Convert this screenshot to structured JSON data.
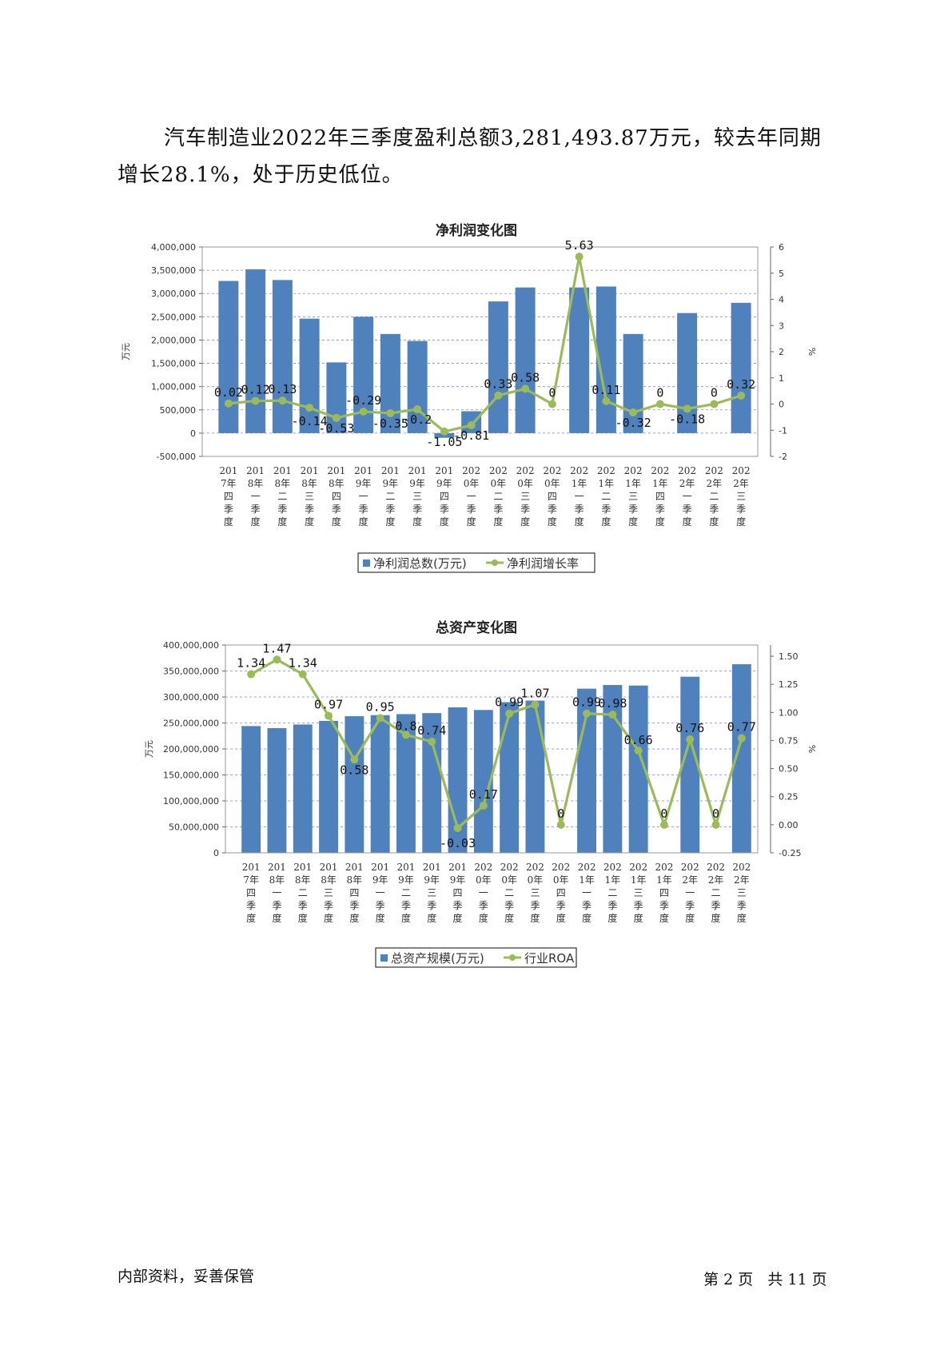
{
  "paragraph": "汽车制造业2022年三季度盈利总额3,281,493.87万元，较去年同期增长28.1%，处于历史低位。",
  "footer": {
    "confidential": "内部资料，妥善保管",
    "page_prefix": "第",
    "page_number": "2",
    "page_unit": "页",
    "total_prefix": "共",
    "total_pages": "11"
  },
  "colors": {
    "bar": "#4f81bd",
    "line": "#9bbb59",
    "grid": "#8080ff"
  },
  "chart_data": [
    {
      "type": "bar",
      "title": "净利润变化图",
      "ylabel": "万元",
      "y2label": "%",
      "ylim": [
        -500000,
        4000000
      ],
      "y2lim": [
        -2,
        6
      ],
      "yticks": [
        "4,000,000",
        "3,500,000",
        "3,000,000",
        "2,500,000",
        "2,000,000",
        "1,500,000",
        "1,000,000",
        "500,000",
        "0",
        "-500,000"
      ],
      "y2ticks": [
        "6",
        "5",
        "4",
        "3",
        "2",
        "1",
        "0",
        "-1",
        "-2"
      ],
      "categories": [
        "2017年四季度",
        "2018年一季度",
        "2018年二季度",
        "2018年三季度",
        "2018年四季度",
        "2019年一季度",
        "2019年二季度",
        "2019年三季度",
        "2019年四季度",
        "2020年一季度",
        "2020年二季度",
        "2020年三季度",
        "2020年四季度",
        "2021年一季度",
        "2021年二季度",
        "2021年三季度",
        "2021年四季度",
        "2022年一季度",
        "2022年二季度",
        "2022年三季度"
      ],
      "series": [
        {
          "name": "净利润总数(万元)",
          "kind": "bar",
          "axis": "left",
          "values": [
            3270000,
            3520000,
            3290000,
            2460000,
            1520000,
            2500000,
            2130000,
            1980000,
            -100000,
            470000,
            2830000,
            3130000,
            null,
            3130000,
            3150000,
            2130000,
            null,
            2580000,
            null,
            2800000
          ]
        },
        {
          "name": "净利润增长率",
          "kind": "line",
          "axis": "right",
          "values": [
            0.02,
            0.12,
            0.13,
            -0.14,
            -0.53,
            -0.29,
            -0.35,
            -0.2,
            -1.05,
            -0.81,
            0.33,
            0.58,
            0,
            5.63,
            0.11,
            -0.32,
            0,
            -0.18,
            0,
            0.32
          ],
          "labels": [
            "0.02",
            "0.12",
            "0.13",
            "-0.14",
            "-0.53",
            "-0.29",
            "-0.35",
            "-0.2",
            "-1.05",
            "-0.81",
            "0.33",
            "0.58",
            "0",
            "5.63",
            "0.11",
            "-0.32",
            "0",
            "-0.18",
            "0",
            "0.32"
          ]
        }
      ],
      "legend": "bottom",
      "grid": true
    },
    {
      "type": "bar",
      "title": "总资产变化图",
      "ylabel": "万元",
      "y2label": "%",
      "ylim": [
        0,
        400000000
      ],
      "y2lim": [
        -0.25,
        1.6
      ],
      "yticks": [
        "400,000,000",
        "350,000,000",
        "300,000,000",
        "250,000,000",
        "200,000,000",
        "150,000,000",
        "100,000,000",
        "50,000,000",
        "0"
      ],
      "y2ticks": [
        "1.50",
        "1.25",
        "1.00",
        "0.75",
        "0.50",
        "0.25",
        "0.00",
        "-0.25"
      ],
      "categories": [
        "2017年四季度",
        "2018年一季度",
        "2018年二季度",
        "2018年三季度",
        "2018年四季度",
        "2019年一季度",
        "2019年二季度",
        "2019年三季度",
        "2019年四季度",
        "2020年一季度",
        "2020年二季度",
        "2020年三季度",
        "2020年四季度",
        "2021年一季度",
        "2021年二季度",
        "2021年三季度",
        "2021年四季度",
        "2022年一季度",
        "2022年二季度",
        "2022年三季度"
      ],
      "series": [
        {
          "name": "总资产规模(万元)",
          "kind": "bar",
          "axis": "left",
          "values": [
            244000000,
            240000000,
            247000000,
            254000000,
            263000000,
            265000000,
            267000000,
            269000000,
            280000000,
            275000000,
            290000000,
            293000000,
            null,
            316000000,
            323000000,
            322000000,
            null,
            339000000,
            null,
            363000000
          ]
        },
        {
          "name": "行业ROA",
          "kind": "line",
          "axis": "right",
          "values": [
            1.34,
            1.47,
            1.34,
            0.97,
            0.58,
            0.95,
            0.8,
            0.74,
            -0.03,
            0.17,
            0.99,
            1.07,
            0,
            0.99,
            0.98,
            0.66,
            0,
            0.76,
            0,
            0.77
          ],
          "labels": [
            "1.34",
            "1.47",
            "1.34",
            "0.97",
            "0.58",
            "0.95",
            "0.8",
            "0.74",
            "-0.03",
            "0.17",
            "0.99",
            "1.07",
            "0",
            "0.99",
            "0.98",
            "0.66",
            "0",
            "0.76",
            "0",
            "0.77"
          ]
        }
      ],
      "legend": "bottom",
      "grid": true
    }
  ]
}
